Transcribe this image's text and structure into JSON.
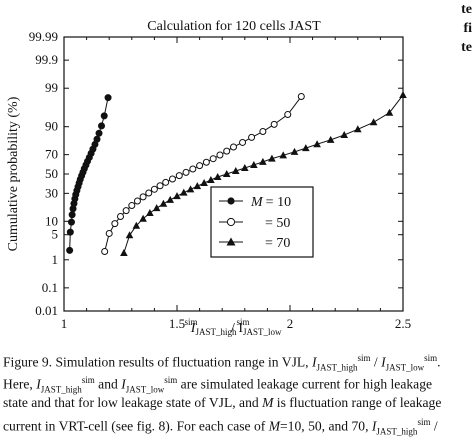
{
  "right_column_fragments": [
    "te",
    "fi",
    "te"
  ],
  "chart_data": {
    "type": "scatter",
    "title": "Calculation for 120 cells JAST",
    "xlabel": {
      "main": "I",
      "sub1": "JAST_high",
      "sup1": "sim",
      "sep": " / I",
      "sub2": "JAST_low",
      "sup2": "sim"
    },
    "ylabel": "Cumulative probability   (%)",
    "y_scale": "probit",
    "xlim": [
      1.0,
      2.5
    ],
    "x_ticks": [
      "1",
      "1.5",
      "2",
      "2.5"
    ],
    "y_ticks": [
      "0.01",
      "0.1",
      "1",
      "5",
      "10",
      "30",
      "50",
      "70",
      "90",
      "99",
      "99.9",
      "99.99"
    ],
    "legend": {
      "position": "center-right",
      "prefix": "M",
      "entries": [
        "= 10",
        "= 50",
        "= 70"
      ]
    },
    "series": [
      {
        "name": "M = 10",
        "marker": "filled-circle",
        "start_x": 1.025,
        "end_x": 1.195,
        "x": [
          1.025,
          1.028,
          1.033,
          1.036,
          1.04,
          1.044,
          1.048,
          1.052,
          1.057,
          1.062,
          1.067,
          1.072,
          1.078,
          1.084,
          1.09,
          1.097,
          1.104,
          1.112,
          1.12,
          1.128,
          1.137,
          1.146,
          1.155,
          1.166,
          1.178,
          1.195
        ]
      },
      {
        "name": "M = 50",
        "marker": "open-circle",
        "start_x": 1.18,
        "end_x": 2.05,
        "x": [
          1.18,
          1.2,
          1.225,
          1.25,
          1.275,
          1.3,
          1.325,
          1.35,
          1.375,
          1.4,
          1.425,
          1.45,
          1.48,
          1.51,
          1.54,
          1.57,
          1.6,
          1.63,
          1.66,
          1.69,
          1.72,
          1.75,
          1.79,
          1.83,
          1.88,
          1.93,
          1.99,
          2.05
        ]
      },
      {
        "name": "M = 70",
        "marker": "filled-triangle",
        "start_x": 1.265,
        "end_x": 2.5,
        "x": [
          1.265,
          1.29,
          1.32,
          1.35,
          1.38,
          1.41,
          1.44,
          1.47,
          1.5,
          1.53,
          1.56,
          1.59,
          1.62,
          1.65,
          1.68,
          1.72,
          1.76,
          1.8,
          1.84,
          1.88,
          1.92,
          1.97,
          2.02,
          2.07,
          2.12,
          2.18,
          2.24,
          2.3,
          2.37,
          2.44,
          2.5
        ]
      }
    ]
  },
  "caption": {
    "line1": {
      "a": "Figure 9.  Simulation results of fluctuation range in VJL, ",
      "i1": "I",
      "s1": "JAST_high",
      "p1": "sim",
      "b": " / ",
      "i2": "I",
      "s2": "JAST_low",
      "p2": "sim",
      "c": "."
    },
    "line2": {
      "a": "Here, ",
      "i1": "I",
      "s1": "JAST_high",
      "p1": "sim",
      "b": " and ",
      "i2": "I",
      "s2": "JAST_low",
      "p2": "sim",
      "c": " are simulated leakage current for high leakage"
    },
    "line3": {
      "a": "state and that for low leakage state of VJL, and ",
      "m": "M",
      "b": " is fluctuation range of leakage"
    },
    "line4": {
      "a": "current in VRT-cell (see fig. 8). For each case of ",
      "m": "M",
      "b": "=10, 50, and 70, ",
      "i1": "I",
      "s1": "JAST_high",
      "p1": "sim",
      "c": " /"
    }
  }
}
